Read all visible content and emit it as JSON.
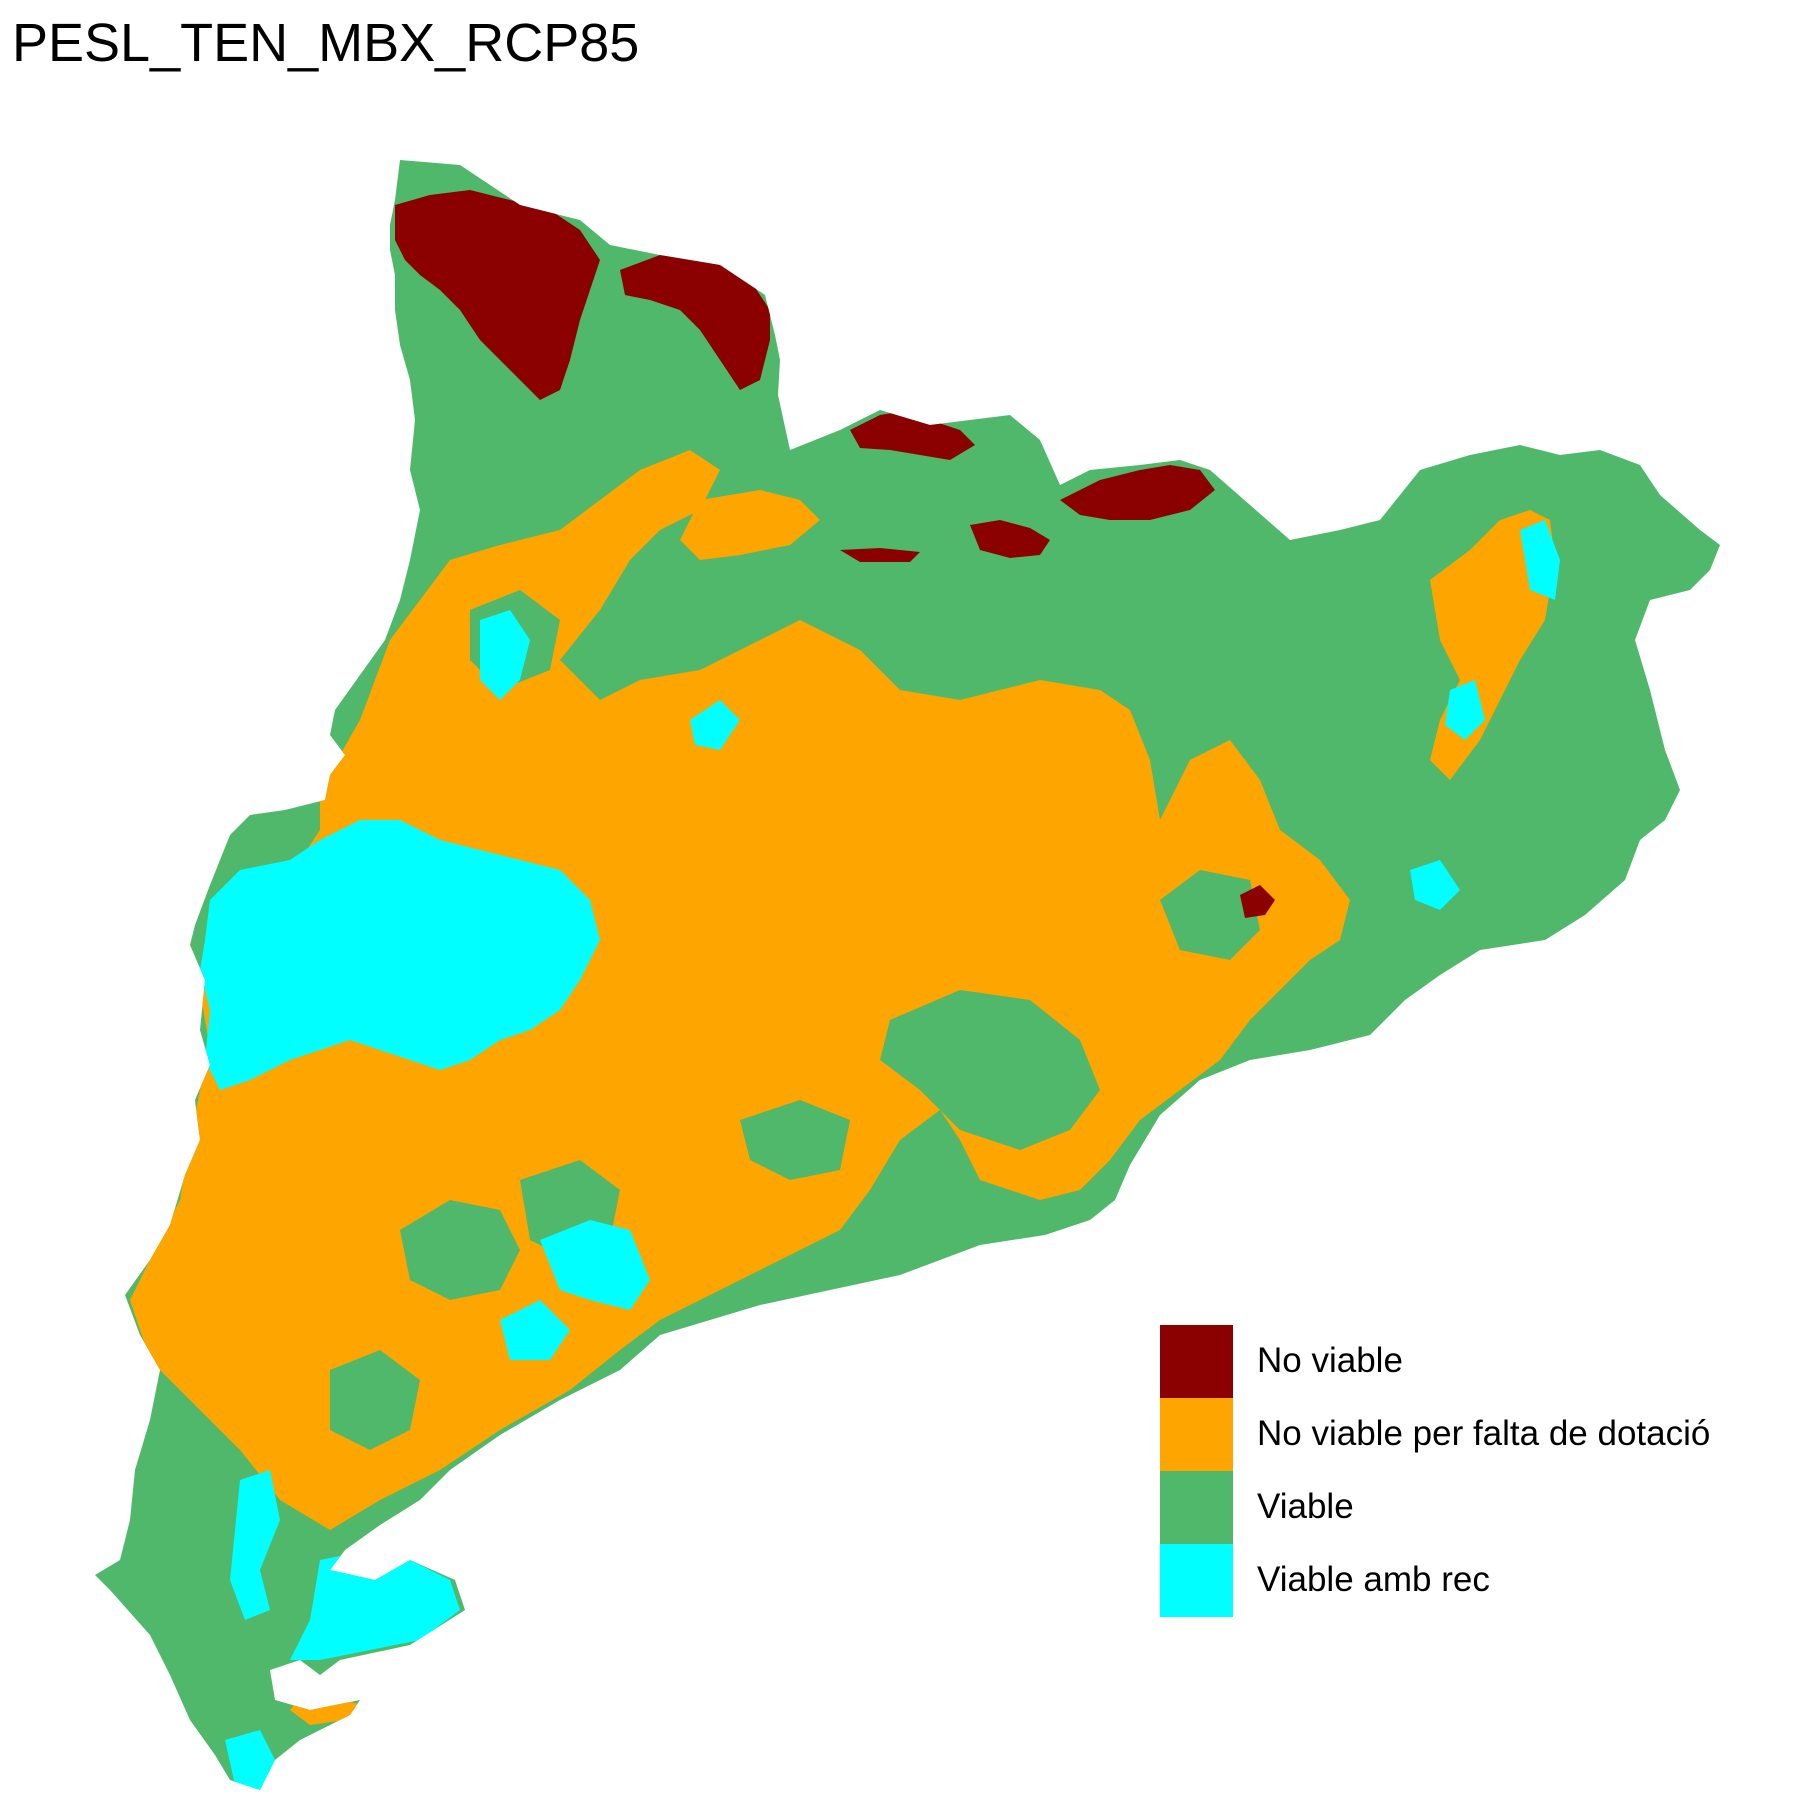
{
  "title": "PESL_TEN_MBX_RCP85",
  "legend": {
    "items": [
      {
        "label": "No viable",
        "color": "#8b0000"
      },
      {
        "label": "No viable per falta de dotació",
        "color": "#ffa500"
      },
      {
        "label": "Viable",
        "color": "#4fb86a"
      },
      {
        "label": "Viable amb rec",
        "color": "#00ffff"
      }
    ]
  }
}
